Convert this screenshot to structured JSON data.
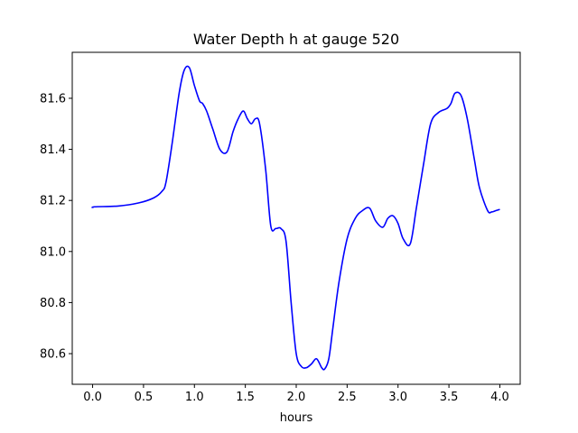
{
  "chart_data": {
    "type": "line",
    "title": "Water Depth h at gauge 520",
    "xlabel": "hours",
    "ylabel": "",
    "xlim": [
      -0.2,
      4.2
    ],
    "ylim": [
      80.48,
      81.78
    ],
    "xticks": [
      0.0,
      0.5,
      1.0,
      1.5,
      2.0,
      2.5,
      3.0,
      3.5,
      4.0
    ],
    "xtick_labels": [
      "0.0",
      "0.5",
      "1.0",
      "1.5",
      "2.0",
      "2.5",
      "3.0",
      "3.5",
      "4.0"
    ],
    "yticks": [
      80.6,
      80.8,
      81.0,
      81.2,
      81.4,
      81.6
    ],
    "ytick_labels": [
      "80.6",
      "80.8",
      "81.0",
      "81.2",
      "81.4",
      "81.6"
    ],
    "grid": false,
    "series": [
      {
        "color": "#0000ff",
        "x": [
          0.0,
          0.02,
          0.25,
          0.45,
          0.6,
          0.68,
          0.72,
          0.78,
          0.85,
          0.9,
          0.95,
          1.0,
          1.05,
          1.08,
          1.12,
          1.18,
          1.25,
          1.32,
          1.38,
          1.43,
          1.48,
          1.52,
          1.56,
          1.6,
          1.64,
          1.7,
          1.75,
          1.8,
          1.85,
          1.9,
          1.95,
          2.0,
          2.05,
          2.1,
          2.15,
          2.2,
          2.25,
          2.28,
          2.32,
          2.36,
          2.42,
          2.5,
          2.58,
          2.65,
          2.72,
          2.78,
          2.85,
          2.9,
          2.95,
          3.0,
          3.05,
          3.12,
          3.18,
          3.25,
          3.32,
          3.4,
          3.48,
          3.52,
          3.56,
          3.62,
          3.68,
          3.75,
          3.8,
          3.88,
          3.92,
          3.96,
          4.0
        ],
        "y": [
          81.17,
          81.175,
          81.178,
          81.19,
          81.21,
          81.235,
          81.27,
          81.42,
          81.62,
          81.71,
          81.72,
          81.65,
          81.59,
          81.58,
          81.55,
          81.48,
          81.4,
          81.39,
          81.47,
          81.52,
          81.55,
          81.52,
          81.5,
          81.52,
          81.5,
          81.32,
          81.1,
          81.09,
          81.09,
          81.04,
          80.8,
          80.6,
          80.55,
          80.545,
          80.56,
          80.58,
          80.545,
          80.54,
          80.58,
          80.7,
          80.88,
          81.05,
          81.13,
          81.16,
          81.17,
          81.12,
          81.095,
          81.13,
          81.14,
          81.11,
          81.05,
          81.03,
          81.17,
          81.34,
          81.5,
          81.545,
          81.56,
          81.58,
          81.62,
          81.61,
          81.52,
          81.36,
          81.25,
          81.16,
          81.155,
          81.16,
          81.165
        ]
      }
    ]
  }
}
